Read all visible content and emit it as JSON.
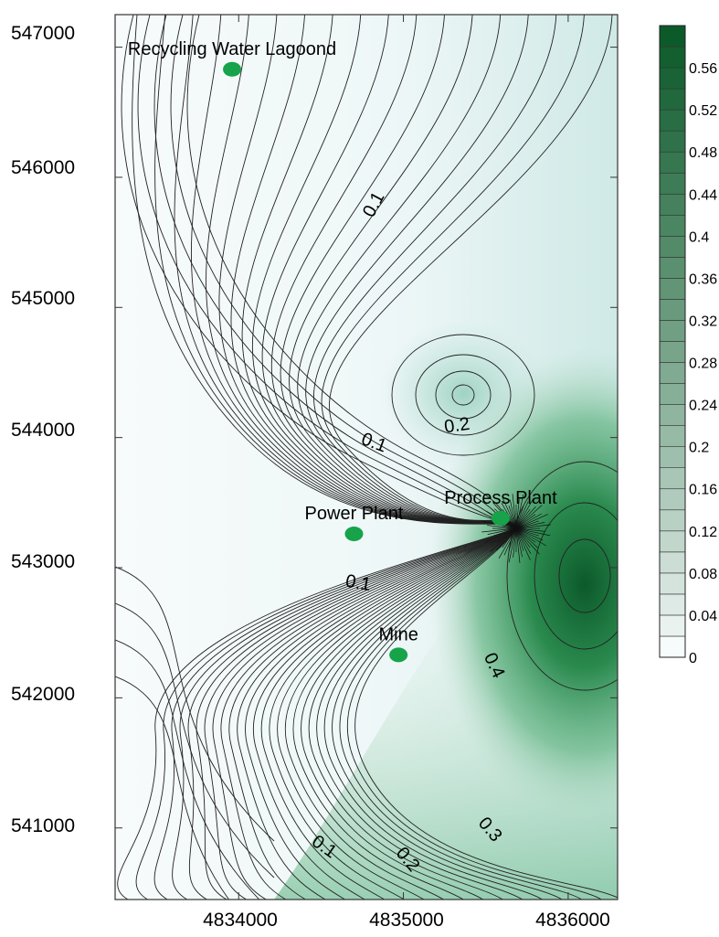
{
  "chart_data": {
    "type": "contour",
    "x_ticks": [
      "4834000",
      "4835000",
      "4836000"
    ],
    "y_ticks": [
      "547000",
      "546000",
      "545000",
      "544000",
      "543000",
      "542000",
      "541000"
    ],
    "xlim": [
      4833250,
      4836300
    ],
    "ylim": [
      540450,
      547250
    ],
    "sites": [
      {
        "name": "Recycling Water Lagoond",
        "x": 4833960,
        "y": 546830
      },
      {
        "name": "Power Plant",
        "x": 4834700,
        "y": 543260
      },
      {
        "name": "Process Plant",
        "x": 4835590,
        "y": 543380
      },
      {
        "name": "Mine",
        "x": 4834970,
        "y": 542330
      }
    ],
    "contour_labels": [
      {
        "text": "0.1",
        "x": 4834850,
        "y": 545770,
        "angle": -62
      },
      {
        "text": "0.1",
        "x": 4834810,
        "y": 543920,
        "angle": 20
      },
      {
        "text": "0.2",
        "x": 4835330,
        "y": 544050,
        "angle": -8
      },
      {
        "text": "0.1",
        "x": 4834720,
        "y": 542840,
        "angle": 10
      },
      {
        "text": "0.4",
        "x": 4835520,
        "y": 542230,
        "angle": 65
      },
      {
        "text": "0.3",
        "x": 4835500,
        "y": 540960,
        "angle": 50
      },
      {
        "text": "0.2",
        "x": 4835000,
        "y": 540730,
        "angle": 50
      },
      {
        "text": "0.1",
        "x": 4834500,
        "y": 540820,
        "angle": 35
      }
    ],
    "colorbar": {
      "min": 0,
      "max": 0.6,
      "step": 0.02,
      "tick_labels": [
        "0",
        "0.04",
        "0.08",
        "0.12",
        "0.16",
        "0.2",
        "0.24",
        "0.28",
        "0.32",
        "0.36",
        "0.4",
        "0.44",
        "0.48",
        "0.52",
        "0.56"
      ]
    },
    "colors": {
      "low": "#f6fbfb",
      "high": "#0c5a2a",
      "site_marker": "#16a34a",
      "line": "#222222"
    }
  }
}
